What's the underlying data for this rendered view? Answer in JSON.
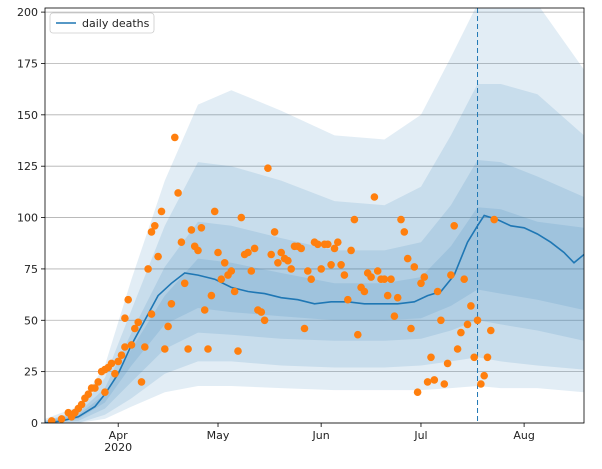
{
  "chart_data": {
    "type": "line",
    "legend": {
      "placement": "top-left",
      "entries": [
        {
          "label": "daily deaths",
          "color": "#1f77b4",
          "marker": "line"
        }
      ]
    },
    "x_axis": {
      "type": "date",
      "range": [
        "2020-03-10",
        "2020-08-19"
      ],
      "ticks": [
        {
          "date": "2020-04-01",
          "label": "Apr",
          "sublabel": "2020"
        },
        {
          "date": "2020-05-01",
          "label": "May",
          "sublabel": ""
        },
        {
          "date": "2020-06-01",
          "label": "Jun",
          "sublabel": ""
        },
        {
          "date": "2020-07-01",
          "label": "Jul",
          "sublabel": ""
        },
        {
          "date": "2020-08-01",
          "label": "Aug",
          "sublabel": ""
        }
      ]
    },
    "y_axis": {
      "range": [
        0,
        202
      ],
      "ticks": [
        0,
        25,
        50,
        75,
        100,
        125,
        150,
        175,
        200
      ]
    },
    "grid": {
      "horizontal": true,
      "vertical": false
    },
    "marker_line": {
      "date": "2020-07-18",
      "style": "dashed",
      "color": "#1f77b4"
    },
    "colors": {
      "line": "#1f77b4",
      "band": "#1f77b4",
      "points": "#ff7f0e",
      "grid": "#b0b0b0"
    },
    "series": [
      {
        "name": "daily deaths",
        "kind": "line",
        "x": [
          "2020-03-10",
          "2020-03-15",
          "2020-03-20",
          "2020-03-25",
          "2020-03-28",
          "2020-04-01",
          "2020-04-05",
          "2020-04-09",
          "2020-04-13",
          "2020-04-17",
          "2020-04-21",
          "2020-04-25",
          "2020-04-30",
          "2020-05-05",
          "2020-05-10",
          "2020-05-15",
          "2020-05-20",
          "2020-05-25",
          "2020-05-30",
          "2020-06-04",
          "2020-06-09",
          "2020-06-14",
          "2020-06-19",
          "2020-06-24",
          "2020-06-29",
          "2020-07-03",
          "2020-07-07",
          "2020-07-11",
          "2020-07-15",
          "2020-07-18",
          "2020-07-20",
          "2020-07-24",
          "2020-07-28",
          "2020-08-01",
          "2020-08-05",
          "2020-08-09",
          "2020-08-13",
          "2020-08-16",
          "2020-08-19"
        ],
        "y": [
          0,
          1,
          3,
          8,
          14,
          24,
          38,
          50,
          62,
          68,
          73,
          72,
          70,
          66,
          64,
          63,
          61,
          60,
          58,
          59,
          59,
          58,
          58,
          58,
          59,
          62,
          64,
          72,
          88,
          96,
          101,
          99,
          96,
          95,
          92,
          88,
          83,
          78,
          82
        ]
      },
      {
        "name": "",
        "kind": "scatter",
        "x": [
          "2020-03-12",
          "2020-03-15",
          "2020-03-17",
          "2020-03-18",
          "2020-03-19",
          "2020-03-20",
          "2020-03-21",
          "2020-03-22",
          "2020-03-23",
          "2020-03-24",
          "2020-03-25",
          "2020-03-26",
          "2020-03-27",
          "2020-03-28",
          "2020-03-28",
          "2020-03-29",
          "2020-03-30",
          "2020-03-31",
          "2020-04-01",
          "2020-04-02",
          "2020-04-03",
          "2020-04-03",
          "2020-04-04",
          "2020-04-05",
          "2020-04-06",
          "2020-04-07",
          "2020-04-08",
          "2020-04-09",
          "2020-04-10",
          "2020-04-11",
          "2020-04-11",
          "2020-04-12",
          "2020-04-13",
          "2020-04-14",
          "2020-04-15",
          "2020-04-16",
          "2020-04-17",
          "2020-04-18",
          "2020-04-19",
          "2020-04-20",
          "2020-04-21",
          "2020-04-22",
          "2020-04-23",
          "2020-04-24",
          "2020-04-25",
          "2020-04-26",
          "2020-04-27",
          "2020-04-28",
          "2020-04-29",
          "2020-04-30",
          "2020-05-01",
          "2020-05-02",
          "2020-05-03",
          "2020-05-04",
          "2020-05-05",
          "2020-05-06",
          "2020-05-07",
          "2020-05-08",
          "2020-05-09",
          "2020-05-10",
          "2020-05-11",
          "2020-05-12",
          "2020-05-13",
          "2020-05-14",
          "2020-05-15",
          "2020-05-16",
          "2020-05-17",
          "2020-05-18",
          "2020-05-19",
          "2020-05-20",
          "2020-05-21",
          "2020-05-22",
          "2020-05-23",
          "2020-05-24",
          "2020-05-25",
          "2020-05-26",
          "2020-05-27",
          "2020-05-28",
          "2020-05-29",
          "2020-05-30",
          "2020-05-31",
          "2020-06-01",
          "2020-06-02",
          "2020-06-03",
          "2020-06-04",
          "2020-06-05",
          "2020-06-06",
          "2020-06-07",
          "2020-06-08",
          "2020-06-09",
          "2020-06-10",
          "2020-06-11",
          "2020-06-12",
          "2020-06-13",
          "2020-06-14",
          "2020-06-15",
          "2020-06-16",
          "2020-06-17",
          "2020-06-18",
          "2020-06-19",
          "2020-06-20",
          "2020-06-21",
          "2020-06-22",
          "2020-06-23",
          "2020-06-24",
          "2020-06-25",
          "2020-06-26",
          "2020-06-27",
          "2020-06-28",
          "2020-06-29",
          "2020-06-30",
          "2020-07-01",
          "2020-07-02",
          "2020-07-03",
          "2020-07-04",
          "2020-07-05",
          "2020-07-06",
          "2020-07-07",
          "2020-07-08",
          "2020-07-09",
          "2020-07-10",
          "2020-07-11",
          "2020-07-12",
          "2020-07-13",
          "2020-07-14",
          "2020-07-15",
          "2020-07-16",
          "2020-07-17",
          "2020-07-18",
          "2020-07-19",
          "2020-07-20",
          "2020-07-21",
          "2020-07-22",
          "2020-07-23"
        ],
        "y": [
          1,
          2,
          5,
          3,
          5,
          7,
          9,
          12,
          14,
          17,
          17,
          20,
          25,
          15,
          26,
          27,
          29,
          24,
          30,
          33,
          37,
          51,
          60,
          38,
          46,
          49,
          20,
          37,
          75,
          53,
          93,
          96,
          81,
          103,
          36,
          47,
          58,
          139,
          112,
          88,
          68,
          36,
          94,
          86,
          84,
          95,
          55,
          36,
          62,
          103,
          83,
          70,
          78,
          72,
          74,
          64,
          35,
          100,
          82,
          83,
          74,
          85,
          55,
          54,
          50,
          124,
          82,
          93,
          78,
          83,
          80,
          79,
          75,
          86,
          86,
          85,
          46,
          74,
          70,
          88,
          87,
          75,
          87,
          87,
          77,
          85,
          88,
          77,
          72,
          60,
          84,
          99,
          43,
          66,
          64,
          73,
          71,
          110,
          74,
          70,
          70,
          62,
          70,
          52,
          61,
          99,
          93,
          80,
          46,
          76,
          15,
          68,
          71,
          20,
          32,
          21,
          64,
          50,
          19,
          29,
          72,
          96,
          36,
          44,
          70,
          48,
          57,
          32,
          50,
          19,
          23,
          32,
          45,
          99
        ]
      }
    ],
    "bands": [
      {
        "name": "",
        "x": [
          "2020-03-10",
          "2020-03-20",
          "2020-03-28",
          "2020-04-05",
          "2020-04-15",
          "2020-04-25",
          "2020-05-05",
          "2020-05-20",
          "2020-06-05",
          "2020-06-20",
          "2020-07-01",
          "2020-07-10",
          "2020-07-18",
          "2020-07-25",
          "2020-08-05",
          "2020-08-19"
        ],
        "lower": [
          0,
          0,
          2,
          8,
          15,
          18,
          18,
          17,
          16,
          16,
          16,
          17,
          18,
          17,
          17,
          15
        ],
        "upper": [
          2,
          8,
          28,
          70,
          118,
          155,
          162,
          152,
          140,
          138,
          150,
          178,
          204,
          204,
          204,
          172
        ]
      },
      {
        "name": "",
        "x": [
          "2020-03-10",
          "2020-03-20",
          "2020-03-28",
          "2020-04-05",
          "2020-04-15",
          "2020-04-25",
          "2020-05-05",
          "2020-05-20",
          "2020-06-05",
          "2020-06-20",
          "2020-07-01",
          "2020-07-10",
          "2020-07-18",
          "2020-07-25",
          "2020-08-05",
          "2020-08-19"
        ],
        "lower": [
          0,
          0,
          4,
          12,
          24,
          30,
          30,
          28,
          27,
          27,
          28,
          30,
          32,
          30,
          28,
          26
        ],
        "upper": [
          1,
          6,
          22,
          55,
          96,
          127,
          125,
          118,
          108,
          106,
          115,
          140,
          165,
          165,
          160,
          140
        ]
      },
      {
        "name": "",
        "x": [
          "2020-03-10",
          "2020-03-20",
          "2020-03-28",
          "2020-04-05",
          "2020-04-15",
          "2020-04-25",
          "2020-05-05",
          "2020-05-20",
          "2020-06-05",
          "2020-06-20",
          "2020-07-01",
          "2020-07-10",
          "2020-07-18",
          "2020-07-25",
          "2020-08-05",
          "2020-08-19"
        ],
        "lower": [
          0,
          1,
          7,
          20,
          36,
          44,
          43,
          41,
          40,
          40,
          41,
          45,
          50,
          48,
          45,
          40
        ],
        "upper": [
          1,
          5,
          17,
          44,
          76,
          98,
          96,
          90,
          84,
          84,
          88,
          106,
          128,
          127,
          120,
          110
        ]
      },
      {
        "name": "",
        "x": [
          "2020-03-10",
          "2020-03-20",
          "2020-03-28",
          "2020-04-05",
          "2020-04-15",
          "2020-04-25",
          "2020-05-05",
          "2020-05-20",
          "2020-06-05",
          "2020-06-20",
          "2020-07-01",
          "2020-07-10",
          "2020-07-18",
          "2020-07-25",
          "2020-08-05",
          "2020-08-19"
        ],
        "lower": [
          0,
          2,
          10,
          28,
          48,
          56,
          54,
          52,
          50,
          50,
          51,
          57,
          65,
          63,
          60,
          55
        ],
        "upper": [
          1,
          4,
          14,
          36,
          62,
          80,
          78,
          73,
          68,
          68,
          71,
          86,
          105,
          104,
          98,
          95
        ]
      }
    ]
  }
}
